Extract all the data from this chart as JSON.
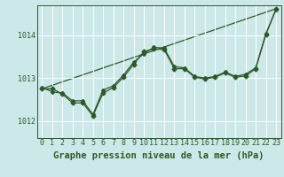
{
  "background_color": "#cce8e8",
  "grid_color": "#ffffff",
  "line_color": "#2d5a27",
  "xlabel": "Graphe pression niveau de la mer (hPa)",
  "xlim": [
    -0.5,
    23.5
  ],
  "ylim": [
    1011.6,
    1014.7
  ],
  "yticks": [
    1012,
    1013,
    1014
  ],
  "xticks": [
    0,
    1,
    2,
    3,
    4,
    5,
    6,
    7,
    8,
    9,
    10,
    11,
    12,
    13,
    14,
    15,
    16,
    17,
    18,
    19,
    20,
    21,
    22,
    23
  ],
  "series1_x": [
    0,
    1,
    2,
    3,
    4,
    5,
    6,
    7,
    8,
    9,
    10,
    11,
    12,
    13,
    14,
    15,
    16,
    17,
    18,
    19,
    20,
    21,
    22,
    23
  ],
  "series1_y": [
    1012.75,
    1012.75,
    1012.63,
    1012.42,
    1012.42,
    1012.12,
    1012.65,
    1012.78,
    1013.02,
    1013.32,
    1013.62,
    1013.68,
    1013.67,
    1013.22,
    1013.22,
    1013.02,
    1012.98,
    1013.02,
    1013.12,
    1013.02,
    1013.05,
    1013.22,
    1014.02,
    1014.62
  ],
  "series2_x": [
    0,
    1,
    2,
    3,
    4,
    5,
    6,
    7,
    8,
    9,
    10,
    11,
    12,
    13,
    14,
    15,
    16,
    17,
    18,
    19,
    20,
    21,
    22,
    23
  ],
  "series2_y": [
    1012.78,
    1012.68,
    1012.65,
    1012.47,
    1012.47,
    1012.15,
    1012.72,
    1012.82,
    1013.07,
    1013.37,
    1013.57,
    1013.72,
    1013.7,
    1013.27,
    1013.24,
    1013.04,
    1013.0,
    1013.04,
    1013.14,
    1013.04,
    1013.09,
    1013.24,
    1014.04,
    1014.6
  ],
  "series3_x": [
    0,
    23
  ],
  "series3_y": [
    1012.75,
    1014.62
  ],
  "title_fontsize": 7.5,
  "tick_fontsize": 6,
  "marker_size": 2.5,
  "line_width": 0.9,
  "grid_linewidth": 0.7
}
